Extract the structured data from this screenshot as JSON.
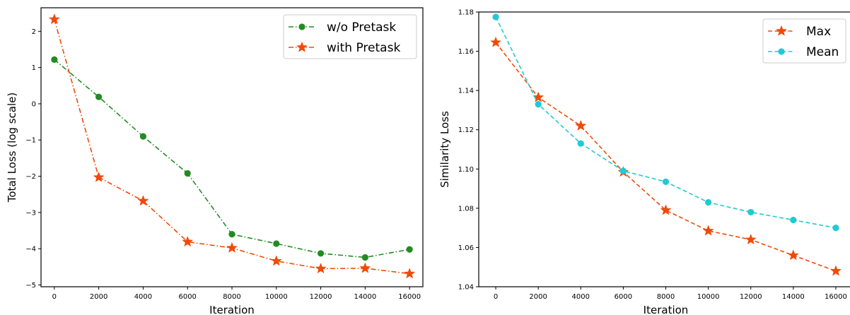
{
  "chart_data": [
    {
      "type": "line",
      "title": "",
      "xlabel": "Iteration",
      "ylabel": "Total Loss (log scale)",
      "xlim": [
        -600,
        16600
      ],
      "ylim": [
        -5.05,
        2.65
      ],
      "xticks": [
        0,
        2000,
        4000,
        6000,
        8000,
        10000,
        12000,
        14000,
        16000
      ],
      "xtick_labels": [
        "0",
        "2000",
        "4000",
        "6000",
        "8000",
        "10000",
        "12000",
        "14000",
        "16000"
      ],
      "yticks": [
        -5,
        -4,
        -3,
        -2,
        -1,
        0,
        1,
        2
      ],
      "ytick_labels": [
        "−5",
        "−4",
        "−3",
        "−2",
        "−1",
        "0",
        "1",
        "2"
      ],
      "legend_position": "upper right",
      "grid": false,
      "x": [
        0,
        2000,
        4000,
        6000,
        8000,
        10000,
        12000,
        14000,
        16000
      ],
      "series": [
        {
          "name": "w/o Pretask",
          "color": "#228b22",
          "marker": "circle",
          "linestyle": "dashdot",
          "values": [
            1.22,
            0.19,
            -0.9,
            -1.92,
            -3.6,
            -3.86,
            -4.13,
            -4.24,
            -4.02
          ]
        },
        {
          "name": "with Pretask",
          "color": "#f04a0a",
          "marker": "star",
          "linestyle": "dashdot",
          "values": [
            2.33,
            -2.03,
            -2.68,
            -3.81,
            -3.98,
            -4.34,
            -4.55,
            -4.54,
            -4.69
          ]
        }
      ]
    },
    {
      "type": "line",
      "title": "",
      "xlabel": "Iteration",
      "ylabel": "Similarity Loss",
      "xlim": [
        -800,
        16800
      ],
      "ylim": [
        1.04,
        1.18
      ],
      "xticks": [
        0,
        2000,
        4000,
        6000,
        8000,
        10000,
        12000,
        14000,
        16000
      ],
      "xtick_labels": [
        "0",
        "2000",
        "4000",
        "6000",
        "8000",
        "10000",
        "12000",
        "14000",
        "16000"
      ],
      "yticks": [
        1.04,
        1.06,
        1.08,
        1.1,
        1.12,
        1.14,
        1.16,
        1.18
      ],
      "ytick_labels": [
        "1.04",
        "1.06",
        "1.08",
        "1.10",
        "1.12",
        "1.14",
        "1.16",
        "1.18"
      ],
      "legend_position": "upper right",
      "grid": false,
      "x": [
        0,
        2000,
        4000,
        6000,
        8000,
        10000,
        12000,
        14000,
        16000
      ],
      "series": [
        {
          "name": "Max",
          "color": "#f04a0a",
          "marker": "star",
          "linestyle": "dashed",
          "values": [
            1.1645,
            1.1365,
            1.122,
            1.0985,
            1.079,
            1.0685,
            1.064,
            1.056,
            1.048
          ]
        },
        {
          "name": "Mean",
          "color": "#1ecbd3",
          "marker": "circle",
          "linestyle": "dashed",
          "values": [
            1.1775,
            1.133,
            1.113,
            1.099,
            1.0935,
            1.083,
            1.078,
            1.074,
            1.07
          ]
        }
      ]
    }
  ]
}
